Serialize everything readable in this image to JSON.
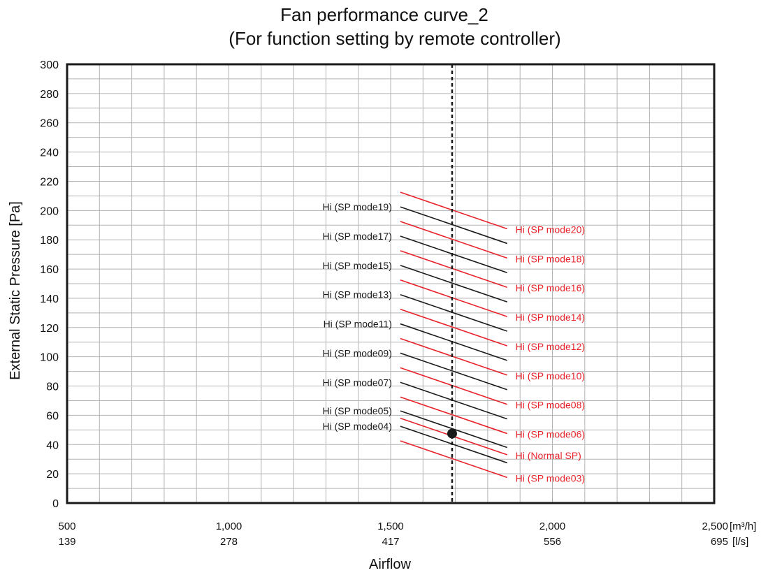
{
  "chart_data": {
    "type": "line",
    "title": "Fan performance curve_2",
    "subtitle": "(For function setting by remote controller)",
    "xlabel": "Airflow",
    "ylabel": "External Static Pressure [Pa]",
    "xlim": [
      500,
      2500
    ],
    "ylim": [
      0,
      300
    ],
    "x_ticks": [
      {
        "value": 500,
        "label": "500",
        "label2": "139"
      },
      {
        "value": 1000,
        "label": "1,000",
        "label2": "278"
      },
      {
        "value": 1500,
        "label": "1,500",
        "label2": "417"
      },
      {
        "value": 2000,
        "label": "2,000",
        "label2": "556"
      },
      {
        "value": 2500,
        "label": "2,500",
        "label2": "695"
      }
    ],
    "x_units": [
      "[m³/h]",
      "[l/s]"
    ],
    "y_ticks": [
      0,
      20,
      40,
      60,
      80,
      100,
      120,
      140,
      160,
      180,
      200,
      220,
      240,
      260,
      280,
      300
    ],
    "grid": true,
    "colors": {
      "black_series": "#1a1a1a",
      "red_series": "#e8232a"
    },
    "rated_airflow": 1690,
    "rated_point": {
      "x": 1690,
      "y": 47.5
    },
    "series": [
      {
        "name": "Hi (SP mode03)",
        "color": "red",
        "label_side": "right",
        "x": [
          1530,
          1860
        ],
        "y": [
          42.5,
          17.5
        ]
      },
      {
        "name": "Hi (SP mode04)",
        "color": "black",
        "label_side": "left",
        "x": [
          1530,
          1860
        ],
        "y": [
          52.5,
          27.5
        ]
      },
      {
        "name": "Hi (Normal SP)",
        "color": "red",
        "label_side": "right",
        "x": [
          1530,
          1860
        ],
        "y": [
          58,
          33
        ]
      },
      {
        "name": "Hi (SP mode05)",
        "color": "black",
        "label_side": "left",
        "x": [
          1530,
          1860
        ],
        "y": [
          63,
          38
        ]
      },
      {
        "name": "Hi (SP mode06)",
        "color": "red",
        "label_side": "right",
        "x": [
          1530,
          1860
        ],
        "y": [
          72.5,
          47.5
        ]
      },
      {
        "name": "Hi (SP mode07)",
        "color": "black",
        "label_side": "left",
        "x": [
          1530,
          1860
        ],
        "y": [
          82.5,
          57.5
        ]
      },
      {
        "name": "Hi (SP mode08)",
        "color": "red",
        "label_side": "right",
        "x": [
          1530,
          1860
        ],
        "y": [
          92.5,
          67.5
        ]
      },
      {
        "name": "Hi (SP mode09)",
        "color": "black",
        "label_side": "left",
        "x": [
          1530,
          1860
        ],
        "y": [
          102.5,
          77.5
        ]
      },
      {
        "name": "Hi (SP mode10)",
        "color": "red",
        "label_side": "right",
        "x": [
          1530,
          1860
        ],
        "y": [
          112.5,
          87.5
        ]
      },
      {
        "name": "Hi (SP mode11)",
        "color": "black",
        "label_side": "left",
        "x": [
          1530,
          1860
        ],
        "y": [
          122.5,
          97.5
        ]
      },
      {
        "name": "Hi (SP mode12)",
        "color": "red",
        "label_side": "right",
        "x": [
          1530,
          1860
        ],
        "y": [
          132.5,
          107.5
        ]
      },
      {
        "name": "Hi (SP mode13)",
        "color": "black",
        "label_side": "left",
        "x": [
          1530,
          1860
        ],
        "y": [
          142.5,
          117.5
        ]
      },
      {
        "name": "Hi (SP mode14)",
        "color": "red",
        "label_side": "right",
        "x": [
          1530,
          1860
        ],
        "y": [
          152.5,
          127.5
        ]
      },
      {
        "name": "Hi (SP mode15)",
        "color": "black",
        "label_side": "left",
        "x": [
          1530,
          1860
        ],
        "y": [
          162.5,
          137.5
        ]
      },
      {
        "name": "Hi (SP mode16)",
        "color": "red",
        "label_side": "right",
        "x": [
          1530,
          1860
        ],
        "y": [
          172.5,
          147.5
        ]
      },
      {
        "name": "Hi (SP mode17)",
        "color": "black",
        "label_side": "left",
        "x": [
          1530,
          1860
        ],
        "y": [
          182.5,
          157.5
        ]
      },
      {
        "name": "Hi (SP mode18)",
        "color": "red",
        "label_side": "right",
        "x": [
          1530,
          1860
        ],
        "y": [
          192.5,
          167.5
        ]
      },
      {
        "name": "Hi (SP mode19)",
        "color": "black",
        "label_side": "left",
        "x": [
          1530,
          1860
        ],
        "y": [
          202.5,
          177.5
        ]
      },
      {
        "name": "Hi (SP mode20)",
        "color": "red",
        "label_side": "right",
        "x": [
          1530,
          1860
        ],
        "y": [
          212.5,
          187.5
        ]
      }
    ]
  }
}
